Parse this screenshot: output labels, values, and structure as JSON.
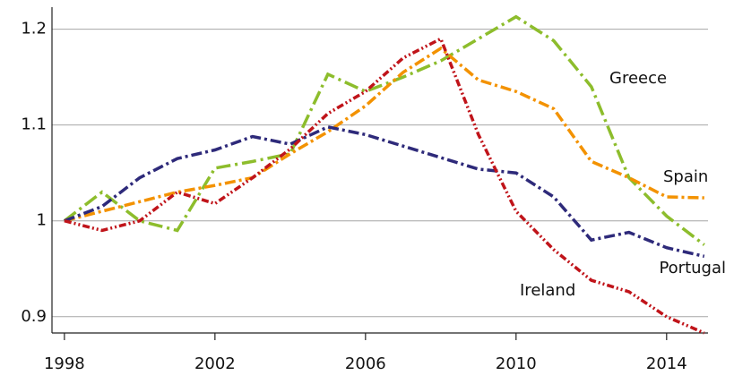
{
  "chart_data": {
    "type": "line",
    "x": [
      1998,
      1999,
      2000,
      2001,
      2002,
      2003,
      2004,
      2005,
      2006,
      2007,
      2008,
      2009,
      2010,
      2011,
      2012,
      2013,
      2014,
      2015
    ],
    "series": [
      {
        "name": "Greece",
        "color": "#8dbd2c",
        "values": [
          1.0,
          1.03,
          1.0,
          0.99,
          1.055,
          1.062,
          1.07,
          1.153,
          1.135,
          1.15,
          1.167,
          1.19,
          1.213,
          1.188,
          1.14,
          1.045,
          1.005,
          0.975
        ]
      },
      {
        "name": "Spain",
        "color": "#f39200",
        "values": [
          1.0,
          1.01,
          1.02,
          1.03,
          1.037,
          1.045,
          1.07,
          1.093,
          1.12,
          1.155,
          1.18,
          1.147,
          1.135,
          1.117,
          1.062,
          1.045,
          1.025,
          1.024
        ]
      },
      {
        "name": "Portugal",
        "color": "#2e2a7a",
        "values": [
          1.0,
          1.015,
          1.045,
          1.065,
          1.074,
          1.088,
          1.08,
          1.098,
          1.09,
          1.078,
          1.066,
          1.054,
          1.05,
          1.025,
          0.98,
          0.988,
          0.972,
          0.963
        ]
      },
      {
        "name": "Ireland",
        "color": "#c0141a",
        "values": [
          1.0,
          0.99,
          1.0,
          1.03,
          1.018,
          1.045,
          1.075,
          1.112,
          1.135,
          1.17,
          1.19,
          1.09,
          1.01,
          0.97,
          0.938,
          0.926,
          0.9,
          0.883
        ]
      }
    ],
    "xlim": [
      1997.67,
      2015.1
    ],
    "xticks": [
      1998,
      2002,
      2006,
      2010,
      2014
    ],
    "ylim": [
      0.883,
      1.223
    ],
    "yticks": [
      0.9,
      1,
      1.1,
      1.2
    ],
    "grid": true
  }
}
